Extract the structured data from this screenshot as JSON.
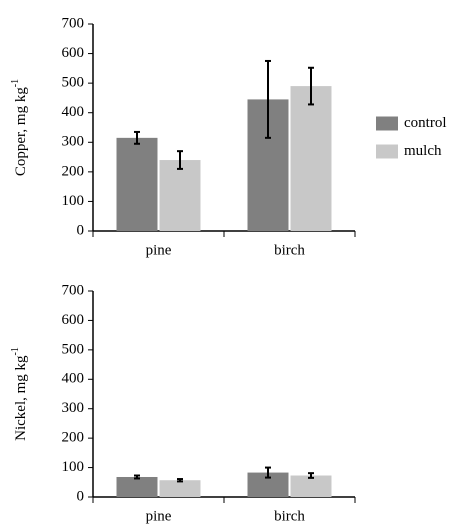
{
  "chart_data": [
    {
      "type": "bar",
      "y_label": "Copper, mg kg",
      "y_label_superscript": "-1",
      "categories": [
        "pine",
        "birch"
      ],
      "series": [
        {
          "name": "control",
          "color": "#808080",
          "values": [
            315,
            445
          ],
          "errors": [
            20,
            130
          ]
        },
        {
          "name": "mulch",
          "color": "#c8c8c8",
          "values": [
            240,
            490
          ],
          "errors": [
            30,
            62
          ]
        }
      ],
      "ylim": [
        0,
        700
      ],
      "yticks": [
        0,
        100,
        200,
        300,
        400,
        500,
        600,
        700
      ],
      "legend": "right"
    },
    {
      "type": "bar",
      "y_label": "Nickel, mg kg",
      "y_label_superscript": "-1",
      "categories": [
        "pine",
        "birch"
      ],
      "series": [
        {
          "name": "control",
          "color": "#808080",
          "values": [
            68,
            83
          ],
          "errors": [
            5,
            17
          ]
        },
        {
          "name": "mulch",
          "color": "#c8c8c8",
          "values": [
            57,
            73
          ],
          "errors": [
            4,
            8
          ]
        }
      ],
      "ylim": [
        0,
        700
      ],
      "yticks": [
        0,
        100,
        200,
        300,
        400,
        500,
        600,
        700
      ]
    }
  ]
}
